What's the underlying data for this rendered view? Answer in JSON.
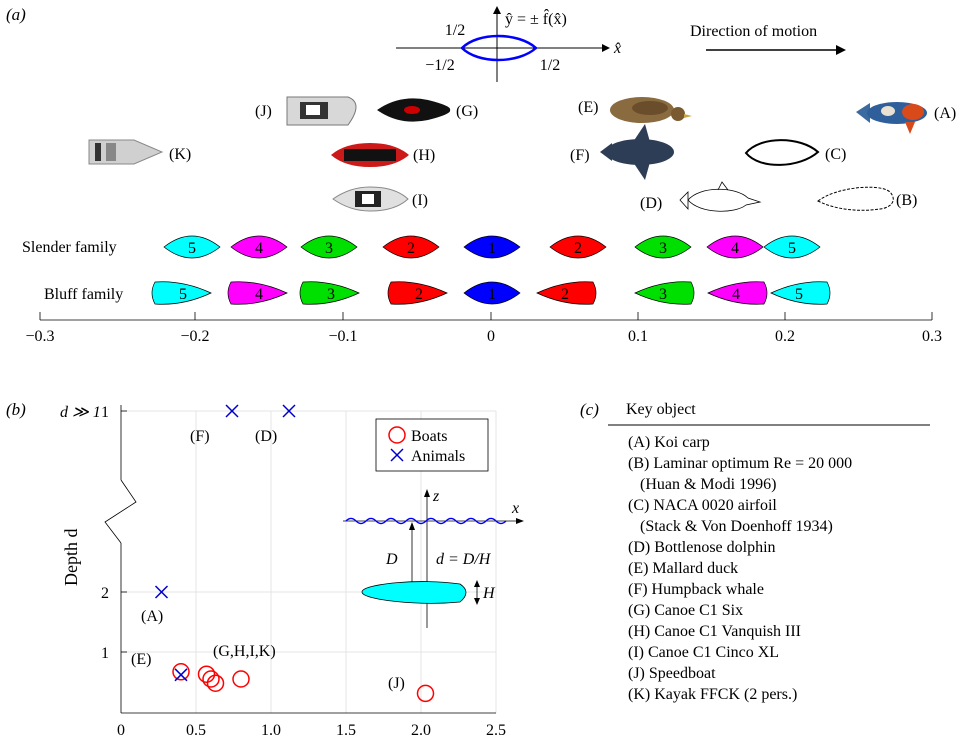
{
  "panel_a": {
    "label": "(a)",
    "shape_eq": "ŷ = ± f̂(x̂)",
    "x_hat": "x̂",
    "half_pos": "1/2",
    "half_neg": "−1/2",
    "half_right": "1/2",
    "direction_label": "Direction of motion",
    "objects": [
      {
        "id": "(A)",
        "icon": "koi-carp-icon"
      },
      {
        "id": "(B)",
        "icon": "laminar-optimum-outline-icon"
      },
      {
        "id": "(C)",
        "icon": "naca-airfoil-outline-icon"
      },
      {
        "id": "(D)",
        "icon": "bottlenose-dolphin-outline-icon"
      },
      {
        "id": "(E)",
        "icon": "mallard-duck-icon"
      },
      {
        "id": "(F)",
        "icon": "humpback-whale-icon"
      },
      {
        "id": "(G)",
        "icon": "canoe-c1-six-icon"
      },
      {
        "id": "(H)",
        "icon": "canoe-c1-vanquish-icon"
      },
      {
        "id": "(I)",
        "icon": "canoe-c1-cinco-icon"
      },
      {
        "id": "(J)",
        "icon": "speedboat-icon"
      },
      {
        "id": "(K)",
        "icon": "kayak-icon"
      }
    ],
    "slender_label": "Slender family",
    "bluff_label": "Bluff family",
    "family_colors": {
      "1": "#0000ff",
      "2": "#ff0000",
      "3": "#00e000",
      "4": "#ff00ff",
      "5": "#00ffff"
    },
    "slender": [
      5,
      4,
      3,
      2,
      1,
      2,
      3,
      4,
      5
    ],
    "bluff": [
      5,
      4,
      3,
      2,
      1,
      2,
      3,
      4,
      5
    ],
    "axis_ticks": [
      "−0.3",
      "−0.2",
      "−0.1",
      "0",
      "0.1",
      "0.2",
      "0.3"
    ]
  },
  "chart_data": {
    "type": "scatter",
    "label": "(b)",
    "ylabel": "Depth d",
    "xlim": [
      0,
      2.5
    ],
    "x_ticks": [
      "0",
      "0.5",
      "1.0",
      "1.5",
      "2.0",
      "2.5"
    ],
    "y_ticks": [
      "1",
      "2",
      "d ≫ 1",
      "1"
    ],
    "grid": true,
    "legend_position": "top-right",
    "series": [
      {
        "name": "Boats",
        "color": "#ff0000",
        "marker": "circle",
        "points": [
          {
            "x": 0.4,
            "y": 0.67
          },
          {
            "x": 0.57,
            "y": 0.63
          },
          {
            "x": 0.6,
            "y": 0.55
          },
          {
            "x": 0.63,
            "y": 0.48
          },
          {
            "x": 0.8,
            "y": 0.55
          },
          {
            "x": 2.03,
            "y": 0.31
          }
        ]
      },
      {
        "name": "Animals",
        "color": "#0000c8",
        "marker": "cross",
        "points": [
          {
            "x": 0.27,
            "y": 2.0,
            "label": "(A)"
          },
          {
            "x": 0.4,
            "y": 0.62,
            "label": "(E)"
          },
          {
            "x": 0.74,
            "y": 1.0,
            "label": "(F)",
            "deep": true
          },
          {
            "x": 1.12,
            "y": 1.0,
            "label": "(D)",
            "deep": true
          }
        ]
      }
    ],
    "annotations": [
      "(A)",
      "(E)",
      "(F)",
      "(D)",
      "(G,H,I,K)",
      "(J)"
    ],
    "inset": {
      "z": "z",
      "x": "x",
      "D": "D",
      "H": "H",
      "eq": "d = D/H"
    }
  },
  "panel_c": {
    "label": "(c)",
    "header": "Key object",
    "rows": [
      "(A) Koi carp",
      "(B) Laminar optimum Re = 20 000",
      "(Huan & Modi 1996)",
      "(C) NACA 0020 airfoil",
      "(Stack & Von Doenhoff 1934)",
      "(D) Bottlenose dolphin",
      "(E) Mallard duck",
      "(F) Humpback whale",
      "(G) Canoe C1 Six",
      "(H) Canoe C1 Vanquish III",
      "(I) Canoe C1 Cinco XL",
      "(J) Speedboat",
      "(K) Kayak FFCK (2 pers.)"
    ]
  }
}
